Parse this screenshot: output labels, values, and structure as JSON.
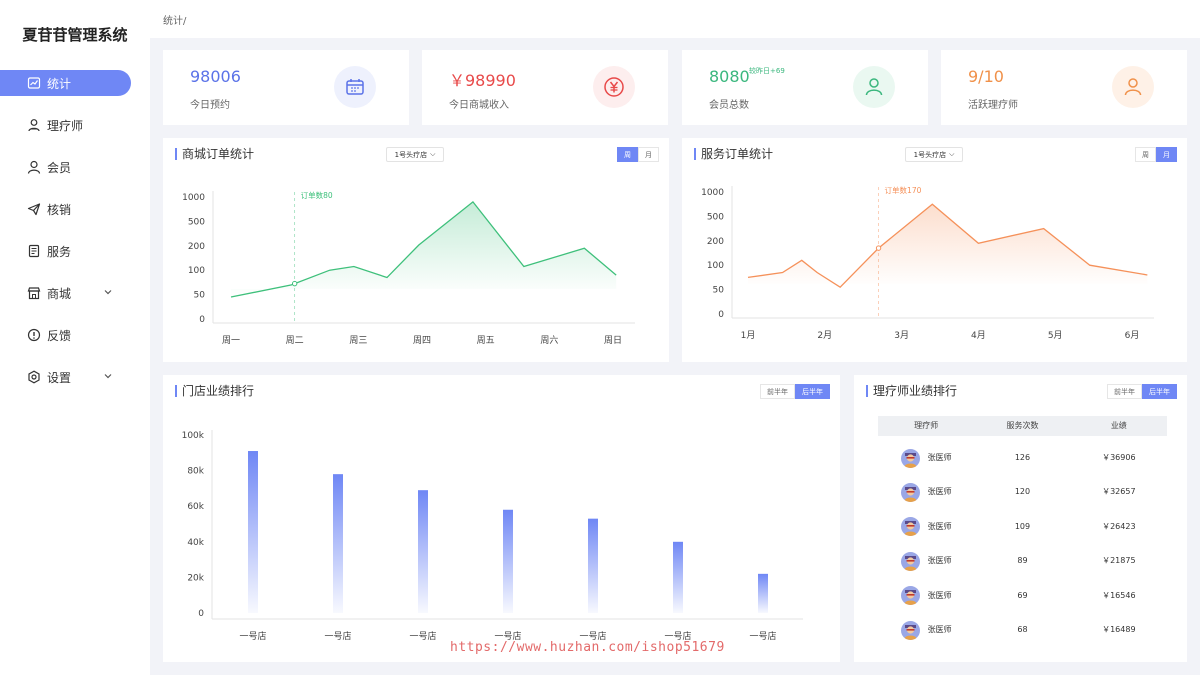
{
  "app": {
    "title": "夏苷苷管理系统"
  },
  "breadcrumb": "统计/",
  "nav": [
    {
      "label": "统计",
      "icon": "chart-line-icon",
      "active": true
    },
    {
      "label": "理疗师",
      "icon": "therapist-icon"
    },
    {
      "label": "会员",
      "icon": "member-icon"
    },
    {
      "label": "核销",
      "icon": "send-icon"
    },
    {
      "label": "服务",
      "icon": "document-icon"
    },
    {
      "label": "商城",
      "icon": "store-icon",
      "expandable": true
    },
    {
      "label": "反馈",
      "icon": "alert-icon"
    },
    {
      "label": "设置",
      "icon": "settings-icon",
      "expandable": true
    }
  ],
  "stats": [
    {
      "value": "98006",
      "label": "今日预约",
      "color": "#5b73e8",
      "icon": "calendar-icon",
      "icon_bg": "#eef1fd"
    },
    {
      "value": "￥98990",
      "label": "今日商城收入",
      "color": "#e84a4a",
      "icon": "yen-icon",
      "icon_bg": "#fdeeee"
    },
    {
      "value": "8080",
      "label": "会员总数",
      "sup": "较昨日+69",
      "color": "#3bb77e",
      "icon": "user-icon",
      "icon_bg": "#eaf8f1"
    },
    {
      "value": "9/10",
      "label": "活跃理疗师",
      "color": "#f0914a",
      "icon": "user-icon",
      "icon_bg": "#fef1e7"
    }
  ],
  "mall_chart": {
    "title": "商城订单统计",
    "select": "1号头疗店",
    "toggle": [
      "周",
      "月"
    ],
    "active": 0,
    "chart_data": {
      "type": "area",
      "categories": [
        "周一",
        "周二",
        "周三",
        "周四",
        "周五",
        "周六",
        "周日"
      ],
      "ytick_labels": [
        "0",
        "50",
        "100",
        "200",
        "500",
        "1000"
      ],
      "points": [
        {
          "x": 0,
          "y": 45
        },
        {
          "x": 0.95,
          "y": 70
        },
        {
          "x": 1.55,
          "y": 100
        },
        {
          "x": 1.93,
          "y": 115
        },
        {
          "x": 2.45,
          "y": 85
        },
        {
          "x": 2.95,
          "y": 210
        },
        {
          "x": 3.8,
          "y": 900
        },
        {
          "x": 4.6,
          "y": 115
        },
        {
          "x": 5.55,
          "y": 190
        },
        {
          "x": 6.05,
          "y": 90
        }
      ],
      "annotation": {
        "text": "订单数80",
        "x": 1
      },
      "color": "#3ec07b"
    }
  },
  "service_chart": {
    "title": "服务订单统计",
    "select": "1号头疗店",
    "toggle": [
      "周",
      "月"
    ],
    "active": 1,
    "chart_data": {
      "type": "area",
      "categories": [
        "1月",
        "2月",
        "3月",
        "4月",
        "5月",
        "6月"
      ],
      "ytick_labels": [
        "0",
        "50",
        "100",
        "200",
        "500",
        "1000"
      ],
      "points": [
        {
          "x": 0,
          "y": 75
        },
        {
          "x": 0.45,
          "y": 85
        },
        {
          "x": 0.7,
          "y": 120
        },
        {
          "x": 0.9,
          "y": 85
        },
        {
          "x": 1.2,
          "y": 55
        },
        {
          "x": 1.7,
          "y": 170
        },
        {
          "x": 2.4,
          "y": 750
        },
        {
          "x": 3.0,
          "y": 190
        },
        {
          "x": 3.85,
          "y": 350
        },
        {
          "x": 4.45,
          "y": 100
        },
        {
          "x": 5.2,
          "y": 80
        }
      ],
      "annotation": {
        "text": "订单数170",
        "x": 1.7
      },
      "color": "#f5915a"
    }
  },
  "store_rank": {
    "title": "门店业绩排行",
    "toggle": [
      "前半年",
      "后半年"
    ],
    "active": 1,
    "chart_data": {
      "type": "bar",
      "categories": [
        "一号店",
        "一号店",
        "一号店",
        "一号店",
        "一号店",
        "一号店",
        "一号店"
      ],
      "values": [
        91000,
        78000,
        69000,
        58000,
        53000,
        40000,
        22000
      ],
      "ylim": [
        0,
        100000
      ],
      "ytick_labels": [
        "0",
        "20k",
        "40k",
        "60k",
        "80k",
        "100k"
      ],
      "color": "#6f87f5"
    }
  },
  "therapist_rank": {
    "title": "理疗师业绩排行",
    "toggle": [
      "前半年",
      "后半年"
    ],
    "active": 1,
    "columns": [
      "理疗师",
      "服务次数",
      "业绩"
    ],
    "rows": [
      {
        "name": "张医师",
        "count": "126",
        "amount": "￥36906"
      },
      {
        "name": "张医师",
        "count": "120",
        "amount": "￥32657"
      },
      {
        "name": "张医师",
        "count": "109",
        "amount": "￥26423"
      },
      {
        "name": "张医师",
        "count": "89",
        "amount": "￥21875"
      },
      {
        "name": "张医师",
        "count": "69",
        "amount": "￥16546"
      },
      {
        "name": "张医师",
        "count": "68",
        "amount": "￥16489"
      }
    ]
  },
  "watermark": "https://www.huzhan.com/ishop51679"
}
